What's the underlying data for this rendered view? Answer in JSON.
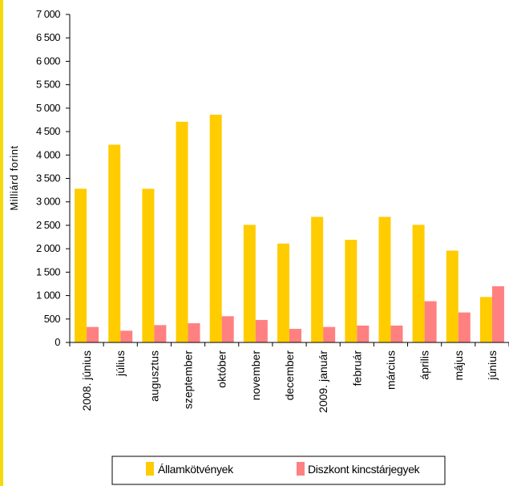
{
  "colors": {
    "frame_accent": "#f5d90a",
    "series_1": "#FFCC00",
    "series_2": "#FF8080",
    "axis": "#000000"
  },
  "chart_data": {
    "type": "bar",
    "title": "",
    "xlabel": "",
    "ylabel": "Milliárd forint",
    "ylim": [
      0,
      7000
    ],
    "y_ticks": [
      0,
      500,
      1000,
      1500,
      2000,
      2500,
      3000,
      3500,
      4000,
      4500,
      5000,
      5500,
      6000,
      6500,
      7000
    ],
    "y_tick_labels": [
      "0",
      "500",
      "1 000",
      "1 500",
      "2 000",
      "2 500",
      "3 000",
      "3 500",
      "4 000",
      "4 500",
      "5 000",
      "5 500",
      "6 000",
      "6 500",
      "7 000"
    ],
    "categories": [
      "2008. június",
      "július",
      "augusztus",
      "szeptember",
      "október",
      "november",
      "december",
      "2009. január",
      "február",
      "március",
      "április",
      "május",
      "június"
    ],
    "series": [
      {
        "name": "Államkötvények",
        "values": [
          3280,
          4220,
          3280,
          4710,
          4860,
          2510,
          2110,
          2680,
          2190,
          2680,
          2510,
          1960,
          970
        ]
      },
      {
        "name": "Diszkont kincstárjegyek",
        "values": [
          330,
          250,
          370,
          410,
          560,
          480,
          290,
          330,
          360,
          360,
          880,
          640,
          1200
        ]
      }
    ],
    "grid": false,
    "legend_position": "bottom"
  }
}
